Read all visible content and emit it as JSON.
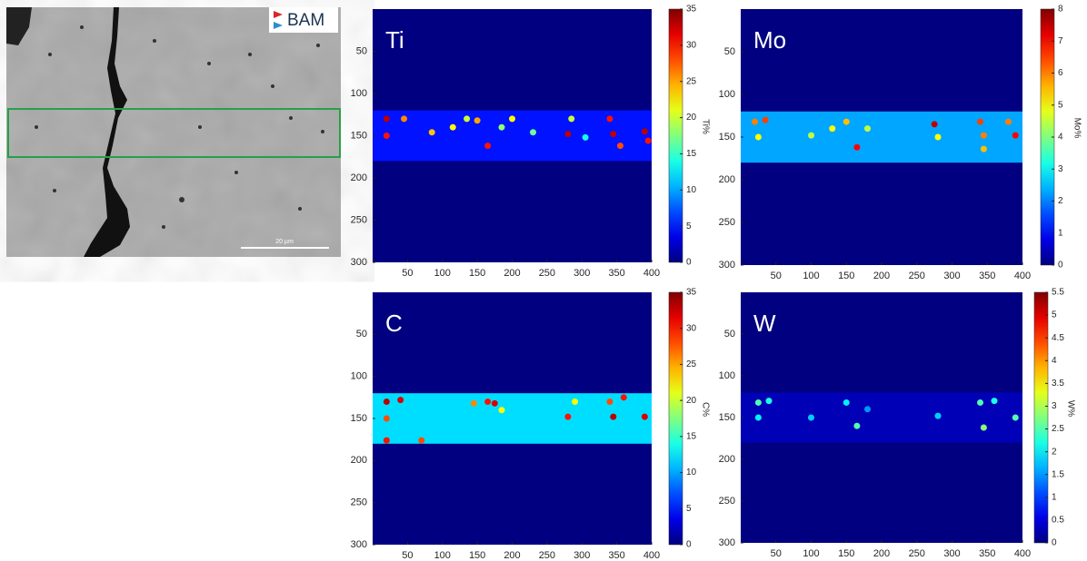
{
  "image": {
    "logo": "BAM",
    "scale_bar": "20 µm"
  },
  "chart_data": [
    {
      "type": "heatmap",
      "label": "Ti",
      "xlim": [
        0,
        400
      ],
      "ylim": [
        0,
        300
      ],
      "y_reversed": true,
      "xticks": [
        50,
        100,
        150,
        200,
        250,
        300,
        350,
        400
      ],
      "yticks": [
        50,
        100,
        150,
        200,
        250,
        300
      ],
      "background": 0,
      "band": {
        "rows": [
          120,
          180
        ],
        "value": 5
      },
      "spots": [
        {
          "x": 20,
          "y": 130,
          "value": 33
        },
        {
          "x": 20,
          "y": 150,
          "value": 30
        },
        {
          "x": 45,
          "y": 130,
          "value": 26
        },
        {
          "x": 85,
          "y": 146,
          "value": 24
        },
        {
          "x": 115,
          "y": 140,
          "value": 22
        },
        {
          "x": 135,
          "y": 130,
          "value": 20
        },
        {
          "x": 150,
          "y": 132,
          "value": 25
        },
        {
          "x": 165,
          "y": 162,
          "value": 30
        },
        {
          "x": 185,
          "y": 140,
          "value": 18
        },
        {
          "x": 200,
          "y": 130,
          "value": 22
        },
        {
          "x": 230,
          "y": 146,
          "value": 17
        },
        {
          "x": 280,
          "y": 148,
          "value": 33
        },
        {
          "x": 285,
          "y": 130,
          "value": 20
        },
        {
          "x": 305,
          "y": 152,
          "value": 14
        },
        {
          "x": 340,
          "y": 130,
          "value": 30
        },
        {
          "x": 345,
          "y": 148,
          "value": 33
        },
        {
          "x": 355,
          "y": 162,
          "value": 28
        },
        {
          "x": 390,
          "y": 145,
          "value": 33
        },
        {
          "x": 395,
          "y": 156,
          "value": 30
        }
      ],
      "colorbar": {
        "label": "Ti%",
        "lim": [
          0,
          35
        ],
        "ticks": [
          0,
          5,
          10,
          15,
          20,
          25,
          30,
          35
        ]
      }
    },
    {
      "type": "heatmap",
      "label": "Mo",
      "xlim": [
        0,
        400
      ],
      "ylim": [
        0,
        300
      ],
      "y_reversed": true,
      "xticks": [
        50,
        100,
        150,
        200,
        250,
        300,
        350,
        400
      ],
      "yticks": [
        50,
        100,
        150,
        200,
        250,
        300
      ],
      "background": 0,
      "band": {
        "rows": [
          120,
          180
        ],
        "value": 2.3
      },
      "spots": [
        {
          "x": 20,
          "y": 132,
          "value": 6
        },
        {
          "x": 25,
          "y": 150,
          "value": 5
        },
        {
          "x": 35,
          "y": 130,
          "value": 6.5
        },
        {
          "x": 100,
          "y": 148,
          "value": 4.5
        },
        {
          "x": 130,
          "y": 140,
          "value": 5
        },
        {
          "x": 150,
          "y": 132,
          "value": 5.5
        },
        {
          "x": 165,
          "y": 162,
          "value": 7
        },
        {
          "x": 180,
          "y": 140,
          "value": 4.5
        },
        {
          "x": 275,
          "y": 135,
          "value": 7.5
        },
        {
          "x": 280,
          "y": 150,
          "value": 5
        },
        {
          "x": 340,
          "y": 132,
          "value": 6.5
        },
        {
          "x": 345,
          "y": 148,
          "value": 6
        },
        {
          "x": 345,
          "y": 164,
          "value": 5.5
        },
        {
          "x": 380,
          "y": 132,
          "value": 6
        },
        {
          "x": 390,
          "y": 148,
          "value": 7
        }
      ],
      "colorbar": {
        "label": "Mo%",
        "lim": [
          0,
          8
        ],
        "ticks": [
          0,
          1,
          2,
          3,
          4,
          5,
          6,
          7,
          8
        ]
      }
    },
    {
      "type": "heatmap",
      "label": "C",
      "xlim": [
        0,
        400
      ],
      "ylim": [
        0,
        300
      ],
      "y_reversed": true,
      "xticks": [
        50,
        100,
        150,
        200,
        250,
        300,
        350,
        400
      ],
      "yticks": [
        50,
        100,
        150,
        200,
        250,
        300
      ],
      "background": 0,
      "band": {
        "rows": [
          120,
          180
        ],
        "value": 12
      },
      "spots": [
        {
          "x": 20,
          "y": 130,
          "value": 33
        },
        {
          "x": 20,
          "y": 150,
          "value": 28
        },
        {
          "x": 40,
          "y": 128,
          "value": 32
        },
        {
          "x": 20,
          "y": 176,
          "value": 30
        },
        {
          "x": 70,
          "y": 176,
          "value": 28
        },
        {
          "x": 145,
          "y": 132,
          "value": 26
        },
        {
          "x": 165,
          "y": 130,
          "value": 30
        },
        {
          "x": 175,
          "y": 132,
          "value": 32
        },
        {
          "x": 185,
          "y": 140,
          "value": 22
        },
        {
          "x": 280,
          "y": 148,
          "value": 30
        },
        {
          "x": 290,
          "y": 130,
          "value": 22
        },
        {
          "x": 340,
          "y": 130,
          "value": 28
        },
        {
          "x": 345,
          "y": 148,
          "value": 33
        },
        {
          "x": 360,
          "y": 125,
          "value": 30
        },
        {
          "x": 390,
          "y": 148,
          "value": 32
        }
      ],
      "colorbar": {
        "label": "C%",
        "lim": [
          0,
          35
        ],
        "ticks": [
          0,
          5,
          10,
          15,
          20,
          25,
          30,
          35
        ]
      }
    },
    {
      "type": "heatmap",
      "label": "W",
      "xlim": [
        0,
        400
      ],
      "ylim": [
        0,
        300
      ],
      "y_reversed": true,
      "xticks": [
        50,
        100,
        150,
        200,
        250,
        300,
        350,
        400
      ],
      "yticks": [
        50,
        100,
        150,
        200,
        250,
        300
      ],
      "background": 0,
      "band": {
        "rows": [
          120,
          180
        ],
        "value": 0.3
      },
      "spots": [
        {
          "x": 25,
          "y": 132,
          "value": 2.5
        },
        {
          "x": 25,
          "y": 150,
          "value": 2
        },
        {
          "x": 40,
          "y": 130,
          "value": 2.2
        },
        {
          "x": 100,
          "y": 150,
          "value": 1.8
        },
        {
          "x": 150,
          "y": 132,
          "value": 2
        },
        {
          "x": 165,
          "y": 160,
          "value": 2.5
        },
        {
          "x": 180,
          "y": 140,
          "value": 1.5
        },
        {
          "x": 280,
          "y": 148,
          "value": 1.8
        },
        {
          "x": 340,
          "y": 132,
          "value": 2.5
        },
        {
          "x": 345,
          "y": 162,
          "value": 2.8
        },
        {
          "x": 360,
          "y": 130,
          "value": 2.2
        },
        {
          "x": 390,
          "y": 150,
          "value": 2.5
        }
      ],
      "colorbar": {
        "label": "W%",
        "lim": [
          0,
          5.5
        ],
        "ticks": [
          0,
          0.5,
          1,
          1.5,
          2,
          2.5,
          3,
          3.5,
          4,
          4.5,
          5,
          5.5
        ]
      }
    }
  ]
}
